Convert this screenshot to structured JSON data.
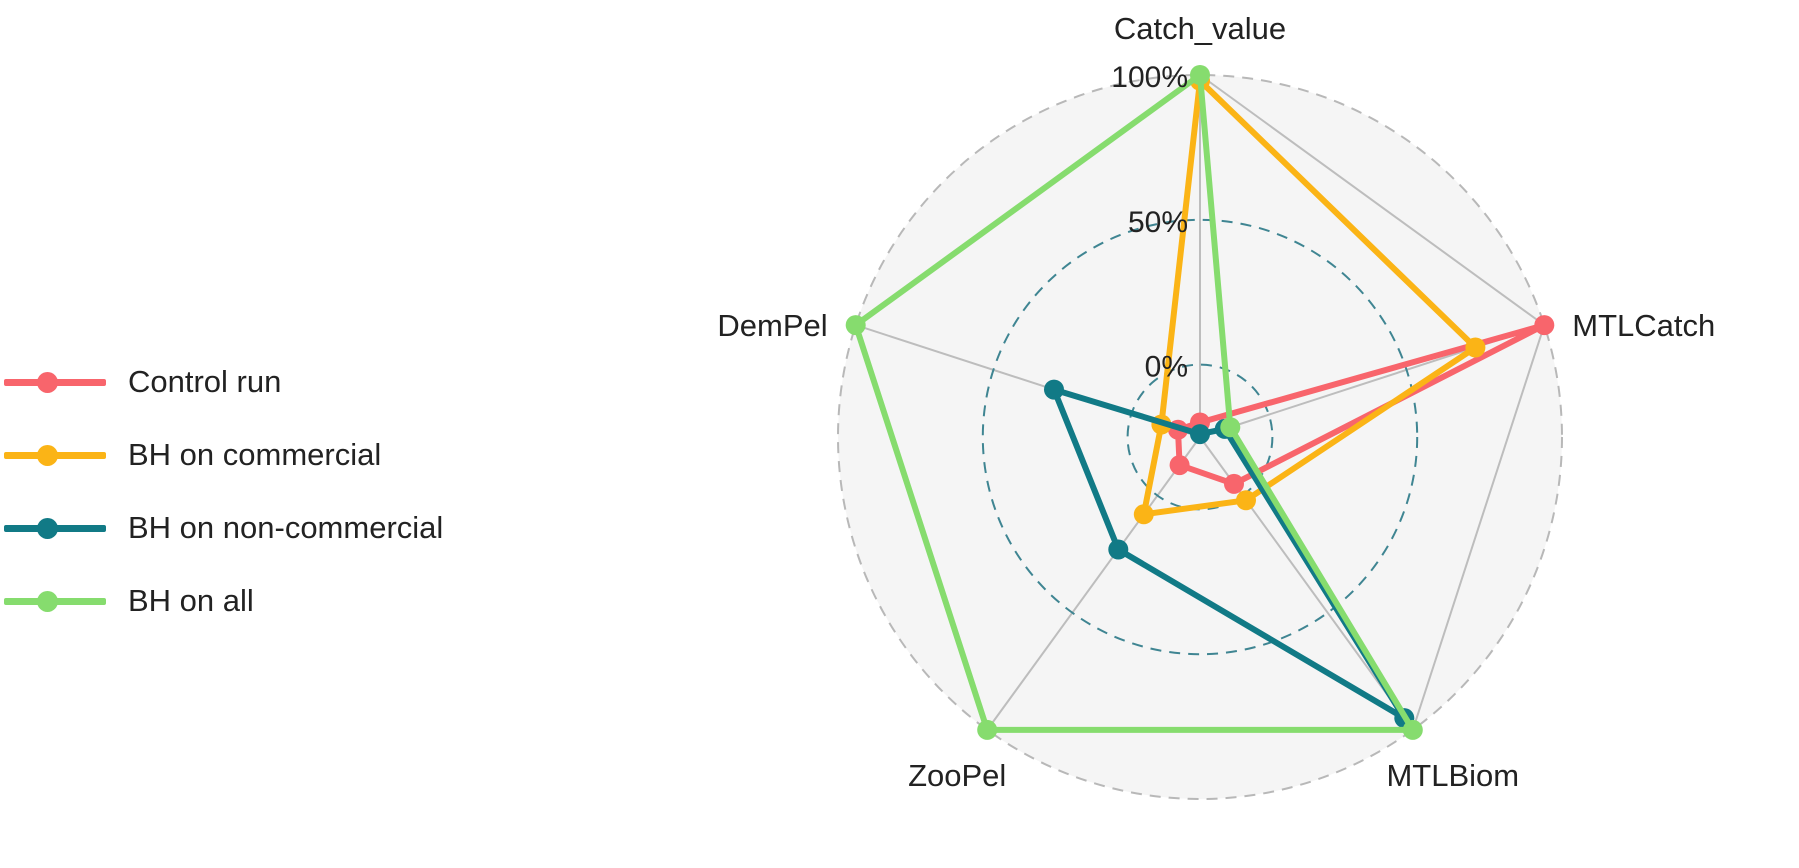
{
  "chart_data": {
    "type": "radar",
    "axes": [
      "Catch_value",
      "MTLCatch",
      "MTLBiom",
      "ZooPel",
      "DemPel"
    ],
    "grid_labels": [
      {
        "value": 0,
        "label": "0%"
      },
      {
        "value": 50,
        "label": "50%"
      },
      {
        "value": 100,
        "label": "100%"
      }
    ],
    "range": [
      -25,
      100
    ],
    "series": [
      {
        "name": "Control run",
        "color": "#F8656C",
        "values": [
          -20,
          100,
          -5,
          -13,
          -17
        ]
      },
      {
        "name": "BH on commercial",
        "color": "#FBB416",
        "values": [
          98,
          75,
          2,
          8,
          -11
        ]
      },
      {
        "name": "BH on non-commercial",
        "color": "#117A86",
        "values": [
          -24,
          -16,
          95,
          23,
          28
        ]
      },
      {
        "name": "BH on all",
        "color": "#86DC6E",
        "values": [
          100,
          -14,
          100,
          100,
          100
        ]
      }
    ],
    "legend_position": "left"
  }
}
